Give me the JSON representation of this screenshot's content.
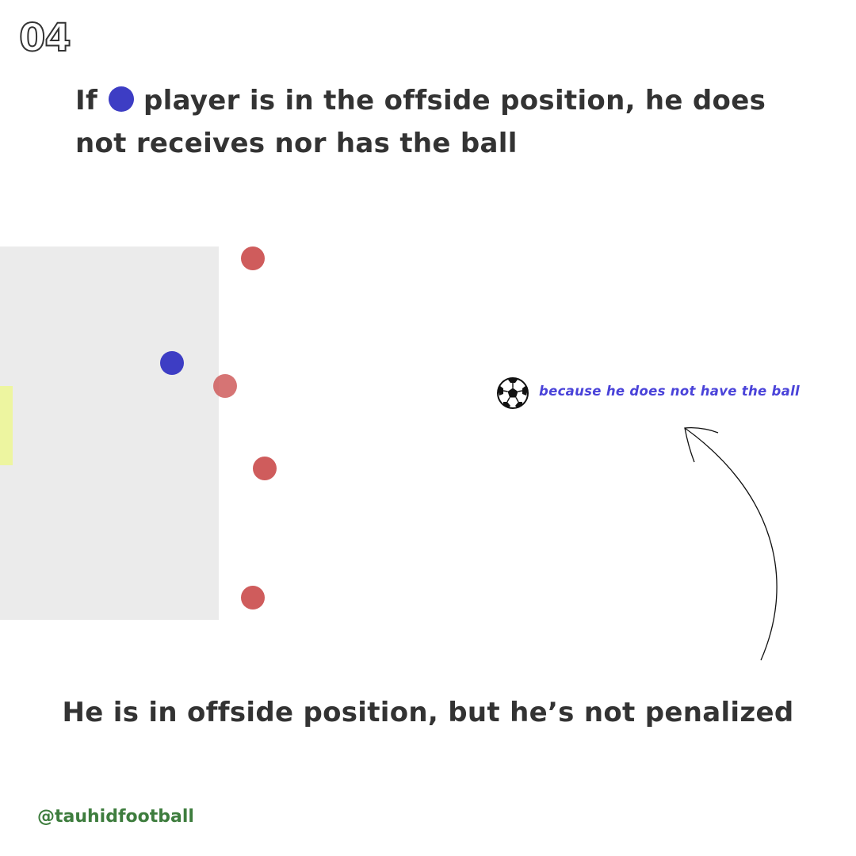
{
  "slide_number": "04",
  "headline": {
    "line1_start": "If",
    "line1_end": "player is in the offside position, he does",
    "line2": "not receives nor has the ball"
  },
  "annotation": "because he does not have the ball",
  "conclusion": "He is in offside position, but he’s not penalized",
  "handle": "@tauhidfootball",
  "colors": {
    "attacker": "#3d3dc4",
    "defender": "#cf5c5c",
    "annotation": "#4a43d9",
    "handle": "#3e7d3e",
    "text": "#333333",
    "pitch_zone": "#ebebeb",
    "goal_marker": "#edf5a0"
  },
  "icons": {
    "ball": "soccer-ball-icon"
  }
}
